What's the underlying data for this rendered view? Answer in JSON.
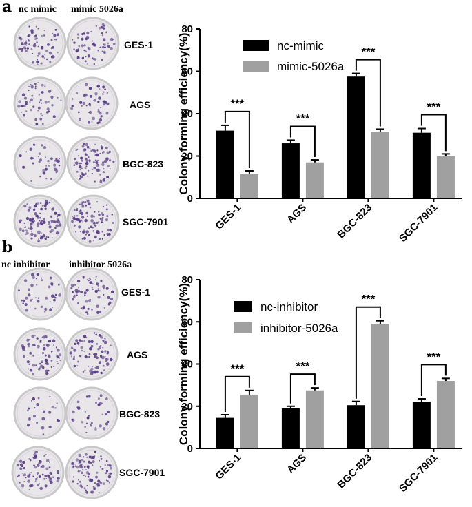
{
  "panels": [
    {
      "letter": "a",
      "dish_headers": [
        "nc mimic",
        "mimic 5026a"
      ],
      "cell_lines": [
        "GES-1",
        "AGS",
        "BGC-823",
        "SGC-7901"
      ]
    },
    {
      "letter": "b",
      "dish_headers": [
        "nc inhibitor",
        "inhibitor 5026a"
      ],
      "cell_lines": [
        "GES-1",
        "AGS",
        "BGC-823",
        "SGC-7901"
      ]
    }
  ],
  "colors": {
    "series1": "#000000",
    "series2": "#a0a0a0",
    "dish_rim": "#c8c8c8",
    "dish_bg": "#e9e6ea",
    "colony": "#5b3f86"
  },
  "chart_data": [
    {
      "type": "bar",
      "categories": [
        "GES-1",
        "AGS",
        "BGC-823",
        "SGC-7901"
      ],
      "series": [
        {
          "name": "nc-mimic",
          "values": [
            32,
            26,
            57.5,
            31
          ],
          "errors": [
            2.5,
            1.5,
            1.5,
            2
          ]
        },
        {
          "name": "mimic-5026a",
          "values": [
            11.5,
            17,
            31.5,
            20
          ],
          "errors": [
            1.5,
            1.2,
            1.2,
            1
          ]
        }
      ],
      "significance": [
        "***",
        "***",
        "***",
        "***"
      ],
      "xlabel": "",
      "ylabel": "Colony forming efficiency(%)",
      "ylim": [
        0,
        80
      ],
      "yticks": [
        "0",
        "20",
        "40",
        "60",
        "80"
      ],
      "legend": "top-left"
    },
    {
      "type": "bar",
      "categories": [
        "GES-1",
        "AGS",
        "BGC-823",
        "SGC-7901"
      ],
      "series": [
        {
          "name": "nc-inhibitor",
          "values": [
            14.5,
            19,
            20.5,
            22
          ],
          "errors": [
            1.5,
            1,
            1.8,
            1.5
          ]
        },
        {
          "name": "inhibitor-5026a",
          "values": [
            25.5,
            27.5,
            59,
            32
          ],
          "errors": [
            2,
            1.2,
            1.5,
            1.2
          ]
        }
      ],
      "significance": [
        "***",
        "***",
        "***",
        "***"
      ],
      "xlabel": "",
      "ylabel": "Colony forming efficiency(%)",
      "ylim": [
        0,
        80
      ],
      "yticks": [
        "0",
        "20",
        "40",
        "60",
        "80"
      ],
      "legend": "top-left"
    }
  ]
}
